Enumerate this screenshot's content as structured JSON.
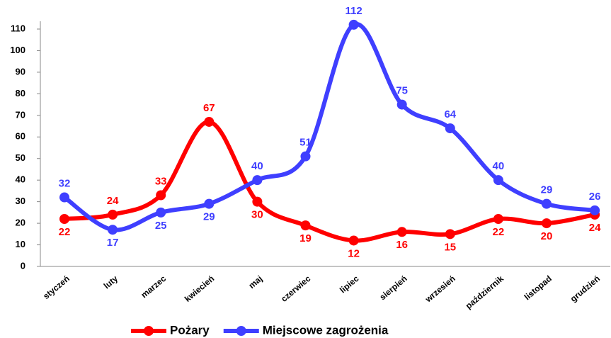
{
  "chart_data": {
    "type": "line",
    "categories": [
      "styczeń",
      "luty",
      "marzec",
      "kwiecień",
      "maj",
      "czerwiec",
      "lipiec",
      "sierpień",
      "wrzesień",
      "październik",
      "listopad",
      "grudzień"
    ],
    "series": [
      {
        "name": "Pożary",
        "color": "#ff0000",
        "values": [
          22,
          24,
          33,
          67,
          30,
          19,
          12,
          16,
          15,
          22,
          20,
          24
        ]
      },
      {
        "name": "Miejscowe zagrożenia",
        "color": "#3f3fff",
        "values": [
          32,
          17,
          25,
          29,
          40,
          51,
          112,
          75,
          64,
          40,
          29,
          26
        ]
      }
    ],
    "ylim": [
      0,
      110
    ],
    "yticks": [
      0,
      10,
      20,
      30,
      40,
      50,
      60,
      70,
      80,
      90,
      100,
      110
    ],
    "legend": "bottom"
  }
}
